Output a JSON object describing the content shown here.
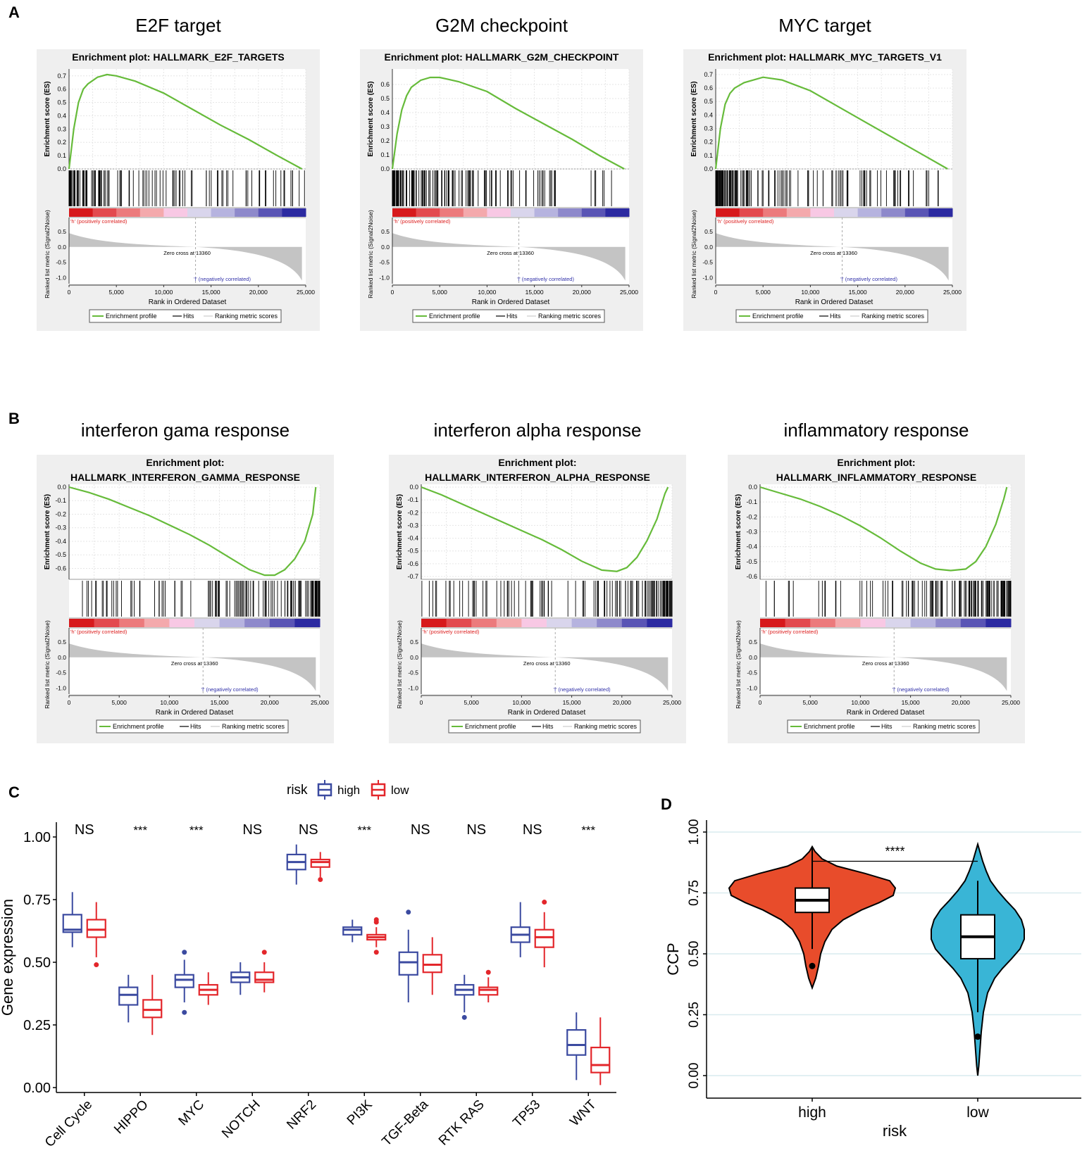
{
  "panel_labels": {
    "A": "A",
    "B": "B",
    "C": "C",
    "D": "D"
  },
  "common": {
    "es_ylabel": "Enrichment score (ES)",
    "rank_ylabel": "Ranked list metric (Signal2Noise)",
    "xlabel": "Rank in Ordered Dataset",
    "pos_label": "'h' (positively correlated)",
    "neg_label": "'l' (negatively correlated)",
    "zero_cross": "Zero cross at 13360",
    "legend": [
      "Enrichment profile",
      "Hits",
      "Ranking metric scores"
    ],
    "x_ticks": [
      "0",
      "5,000",
      "10,000",
      "15,000",
      "20,000",
      "25,000"
    ],
    "rank_ticks": [
      "0.5",
      "0.0",
      "-0.5",
      "-1.0"
    ],
    "colors": {
      "profile": "#66bb3a",
      "high": "#3b4aa0",
      "low": "#e3262b",
      "violin_high": "#e84c2b",
      "violin_low": "#39b5d6"
    }
  },
  "chart_data": [
    {
      "type": "line",
      "panel": "A",
      "title": "E2F target",
      "plot_title": [
        "Enrichment plot: HALLMARK_E2F_TARGETS"
      ],
      "x": [
        0,
        500,
        1000,
        1500,
        2000,
        3000,
        4000,
        5000,
        7000,
        10000,
        13000,
        16000,
        19000,
        22000,
        24600
      ],
      "y": [
        0,
        0.3,
        0.5,
        0.6,
        0.64,
        0.69,
        0.71,
        0.7,
        0.66,
        0.57,
        0.45,
        0.33,
        0.22,
        0.1,
        0
      ],
      "ylim": [
        0,
        0.72
      ],
      "yticks": [
        0.0,
        0.1,
        0.2,
        0.3,
        0.4,
        0.5,
        0.6,
        0.7
      ],
      "ytick_labels": [
        "0.0",
        "0.1",
        "0.2",
        "0.3",
        "0.4",
        "0.5",
        "0.6",
        "0.7"
      ]
    },
    {
      "type": "line",
      "panel": "A",
      "title": "G2M checkpoint",
      "plot_title": [
        "Enrichment plot: HALLMARK_G2M_CHECKPOINT"
      ],
      "x": [
        0,
        500,
        1000,
        1500,
        2000,
        3000,
        4000,
        5000,
        7000,
        10000,
        13000,
        16000,
        19000,
        22000,
        24500
      ],
      "y": [
        0,
        0.25,
        0.42,
        0.52,
        0.58,
        0.63,
        0.65,
        0.65,
        0.62,
        0.55,
        0.43,
        0.32,
        0.21,
        0.09,
        0
      ],
      "ylim": [
        0,
        0.68
      ],
      "yticks": [
        0.0,
        0.1,
        0.2,
        0.3,
        0.4,
        0.5,
        0.6
      ],
      "ytick_labels": [
        "0.0",
        "0.1",
        "0.2",
        "0.3",
        "0.4",
        "0.5",
        "0.6"
      ]
    },
    {
      "type": "line",
      "panel": "A",
      "title": "MYC target",
      "plot_title": [
        "Enrichment plot: HALLMARK_MYC_TARGETS_V1"
      ],
      "x": [
        0,
        500,
        1000,
        1500,
        2000,
        3000,
        4000,
        5000,
        7000,
        10000,
        13000,
        16000,
        19000,
        22000,
        24500
      ],
      "y": [
        0,
        0.3,
        0.48,
        0.56,
        0.6,
        0.64,
        0.66,
        0.68,
        0.66,
        0.58,
        0.46,
        0.34,
        0.22,
        0.1,
        0
      ],
      "ylim": [
        0,
        0.71
      ],
      "yticks": [
        0.0,
        0.1,
        0.2,
        0.3,
        0.4,
        0.5,
        0.6,
        0.7
      ],
      "ytick_labels": [
        "0.0",
        "0.1",
        "0.2",
        "0.3",
        "0.4",
        "0.5",
        "0.6",
        "0.7"
      ]
    },
    {
      "type": "line",
      "panel": "B",
      "title": "interferon gama response",
      "plot_title": [
        "Enrichment plot:",
        "HALLMARK_INTERFERON_GAMMA_RESPONSE"
      ],
      "x": [
        0,
        2000,
        4000,
        6000,
        8000,
        10000,
        12000,
        14000,
        16000,
        18000,
        19500,
        20500,
        21500,
        22500,
        23500,
        24300,
        24600
      ],
      "y": [
        0,
        -0.04,
        -0.09,
        -0.15,
        -0.21,
        -0.28,
        -0.35,
        -0.43,
        -0.52,
        -0.61,
        -0.65,
        -0.65,
        -0.61,
        -0.53,
        -0.4,
        -0.2,
        0
      ],
      "ylim": [
        -0.66,
        0
      ],
      "yticks": [
        0.0,
        -0.1,
        -0.2,
        -0.3,
        -0.4,
        -0.5,
        -0.6
      ],
      "ytick_labels": [
        "0.0",
        "-0.1",
        "-0.2",
        "-0.3",
        "-0.4",
        "-0.5",
        "-0.6"
      ]
    },
    {
      "type": "line",
      "panel": "B",
      "title": "interferon alpha response",
      "plot_title": [
        "Enrichment plot:",
        "HALLMARK_INTERFERON_ALPHA_RESPONSE"
      ],
      "x": [
        0,
        2000,
        4000,
        6000,
        8000,
        10000,
        12000,
        14000,
        16000,
        18000,
        19500,
        20500,
        21500,
        22500,
        23500,
        24300,
        24600
      ],
      "y": [
        0,
        -0.06,
        -0.13,
        -0.2,
        -0.27,
        -0.34,
        -0.41,
        -0.49,
        -0.58,
        -0.65,
        -0.66,
        -0.63,
        -0.55,
        -0.42,
        -0.25,
        -0.05,
        0
      ],
      "ylim": [
        -0.7,
        0
      ],
      "yticks": [
        0.0,
        -0.1,
        -0.2,
        -0.3,
        -0.4,
        -0.5,
        -0.6,
        -0.7
      ],
      "ytick_labels": [
        "0.0",
        "-0.1",
        "-0.2",
        "-0.3",
        "-0.4",
        "-0.5",
        "-0.6",
        "-0.7"
      ]
    },
    {
      "type": "line",
      "panel": "B",
      "title": "inflammatory response",
      "plot_title": [
        "Enrichment plot:",
        "HALLMARK_INFLAMMATORY_RESPONSE"
      ],
      "x": [
        0,
        2000,
        4000,
        6000,
        8000,
        10000,
        12000,
        14000,
        16000,
        17500,
        19000,
        20500,
        21500,
        22500,
        23500,
        24300,
        24600
      ],
      "y": [
        0,
        -0.04,
        -0.08,
        -0.13,
        -0.19,
        -0.26,
        -0.34,
        -0.43,
        -0.51,
        -0.55,
        -0.56,
        -0.55,
        -0.5,
        -0.4,
        -0.25,
        -0.08,
        0
      ],
      "ylim": [
        -0.6,
        0
      ],
      "yticks": [
        0.0,
        -0.1,
        -0.2,
        -0.3,
        -0.4,
        -0.5,
        -0.6
      ],
      "ytick_labels": [
        "0.0",
        "-0.1",
        "-0.2",
        "-0.3",
        "-0.4",
        "-0.5",
        "-0.6"
      ]
    },
    {
      "type": "box",
      "panel": "C",
      "legend_title": "risk",
      "series_names": [
        "high",
        "low"
      ],
      "ylabel": "Gene expression",
      "ylim": [
        0,
        1.0
      ],
      "yticks": [
        "0.00",
        "0.25",
        "0.50",
        "0.75",
        "1.00"
      ],
      "categories": [
        "Cell Cycle",
        "HIPPO",
        "MYC",
        "NOTCH",
        "NRF2",
        "PI3K",
        "TGF-Beta",
        "RTK RAS",
        "TP53",
        "WNT"
      ],
      "significance": [
        "NS",
        "***",
        "***",
        "NS",
        "NS",
        "***",
        "NS",
        "NS",
        "NS",
        "***"
      ],
      "high": [
        [
          0.56,
          0.62,
          0.63,
          0.69,
          0.78
        ],
        [
          0.26,
          0.33,
          0.37,
          0.4,
          0.45
        ],
        [
          0.34,
          0.4,
          0.43,
          0.45,
          0.51
        ],
        [
          0.37,
          0.42,
          0.44,
          0.46,
          0.5
        ],
        [
          0.81,
          0.87,
          0.9,
          0.93,
          0.97
        ],
        [
          0.58,
          0.61,
          0.63,
          0.64,
          0.67
        ],
        [
          0.34,
          0.45,
          0.5,
          0.54,
          0.63
        ],
        [
          0.3,
          0.37,
          0.39,
          0.41,
          0.45
        ],
        [
          0.52,
          0.58,
          0.61,
          0.64,
          0.74
        ],
        [
          0.03,
          0.13,
          0.17,
          0.23,
          0.3
        ]
      ],
      "low": [
        [
          0.52,
          0.6,
          0.63,
          0.67,
          0.74
        ],
        [
          0.21,
          0.28,
          0.31,
          0.35,
          0.45
        ],
        [
          0.33,
          0.37,
          0.39,
          0.41,
          0.46
        ],
        [
          0.38,
          0.42,
          0.43,
          0.46,
          0.5
        ],
        [
          0.84,
          0.88,
          0.9,
          0.91,
          0.94
        ],
        [
          0.56,
          0.59,
          0.6,
          0.61,
          0.64
        ],
        [
          0.37,
          0.46,
          0.49,
          0.53,
          0.6
        ],
        [
          0.34,
          0.37,
          0.39,
          0.4,
          0.44
        ],
        [
          0.48,
          0.56,
          0.6,
          0.63,
          0.7
        ],
        [
          0.01,
          0.06,
          0.09,
          0.16,
          0.28
        ]
      ],
      "high_outliers": [
        [],
        [],
        [
          0.3,
          0.54
        ],
        [],
        [],
        [],
        [
          0.7
        ],
        [
          0.28
        ],
        [],
        []
      ],
      "low_outliers": [
        [
          0.49
        ],
        [],
        [],
        [
          0.54
        ],
        [
          0.83
        ],
        [
          0.54,
          0.66,
          0.67
        ],
        [],
        [
          0.46
        ],
        [
          0.74
        ],
        []
      ]
    },
    {
      "type": "violin",
      "panel": "D",
      "categories": [
        "high",
        "low"
      ],
      "xlabel": "risk",
      "ylabel": "CCP",
      "ylim": [
        0,
        1.0
      ],
      "yticks": [
        "0.00",
        "0.25",
        "0.50",
        "0.75",
        "1.00"
      ],
      "significance": "****",
      "box": [
        [
          0.52,
          0.67,
          0.72,
          0.77,
          0.94
        ],
        [
          0.26,
          0.48,
          0.57,
          0.66,
          0.8
        ]
      ],
      "range": [
        [
          0.36,
          0.94
        ],
        [
          0.0,
          0.95
        ]
      ],
      "outliers": [
        [
          0.45
        ],
        [
          0.16
        ]
      ]
    }
  ]
}
